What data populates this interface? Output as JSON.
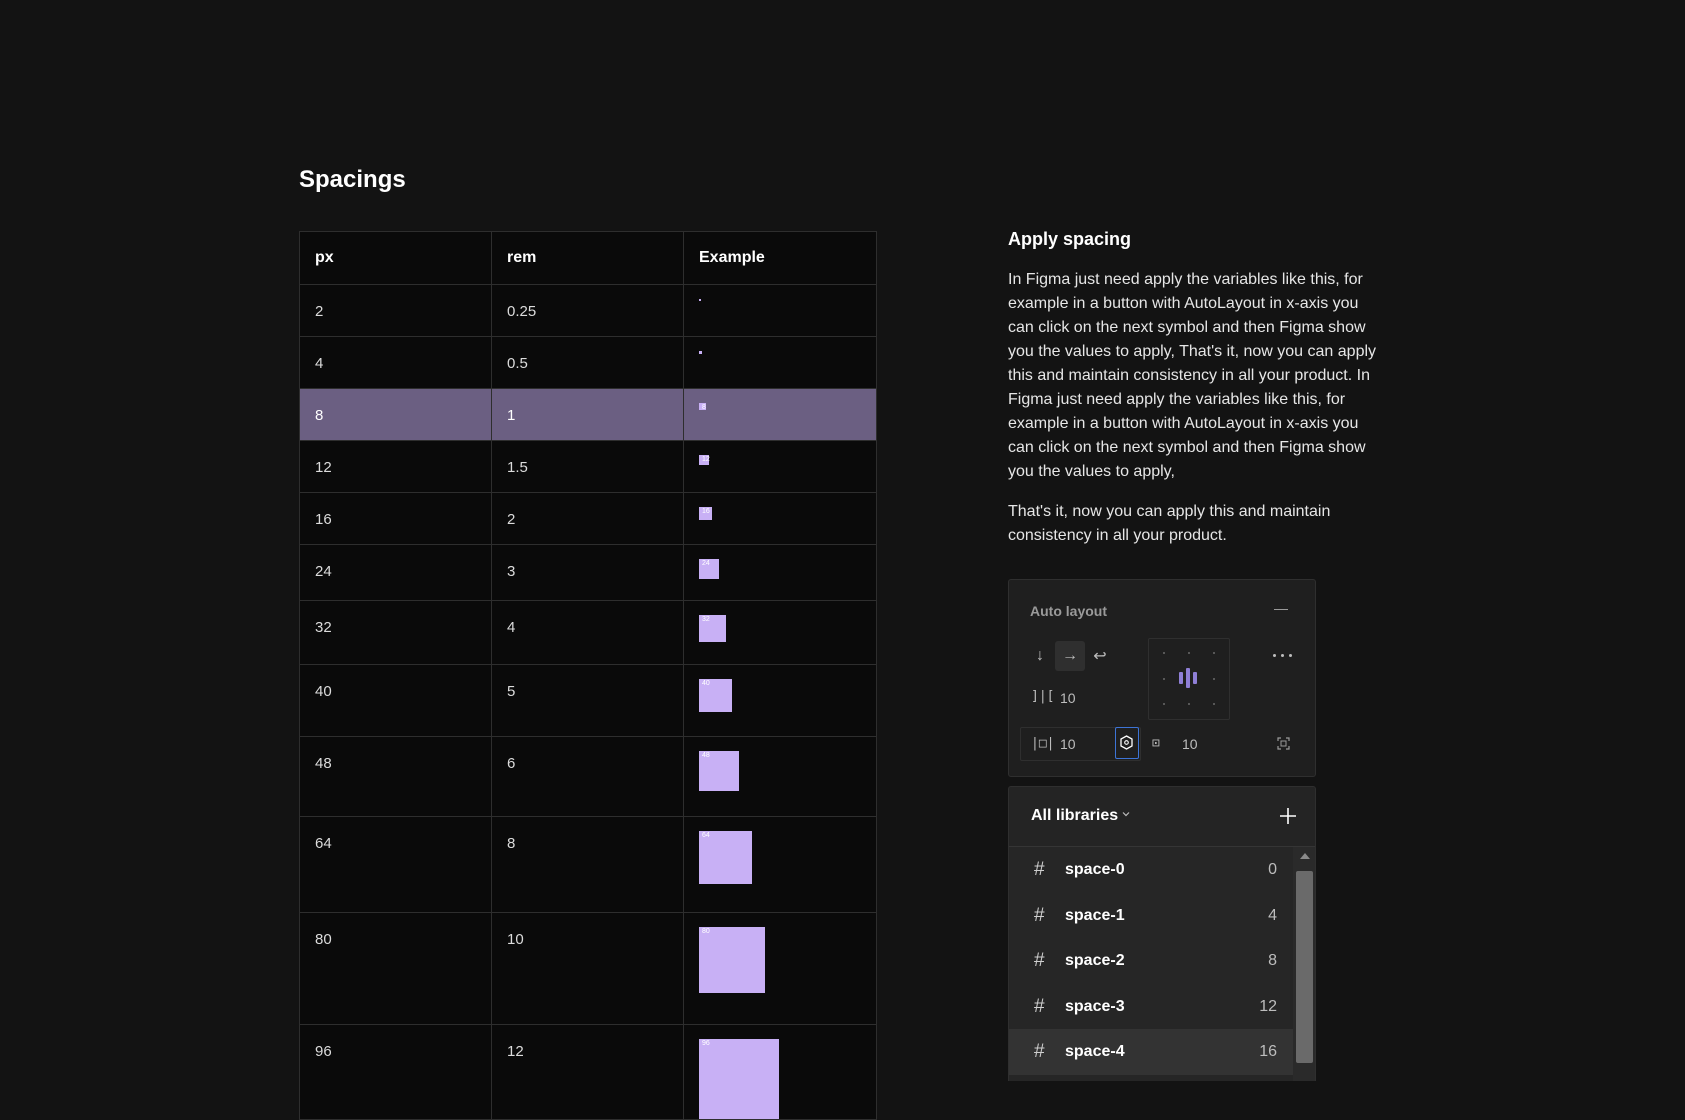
{
  "page": {
    "title": "Spacings"
  },
  "table": {
    "headers": [
      "px",
      "rem",
      "Example"
    ],
    "rows": [
      {
        "px": "2",
        "rem": "0.25",
        "label": "2",
        "swatch": 2
      },
      {
        "px": "4",
        "rem": "0.5",
        "label": "4",
        "swatch": 4
      },
      {
        "px": "8",
        "rem": "1",
        "label": "8",
        "swatch": 8,
        "selected": true
      },
      {
        "px": "12",
        "rem": "1.5",
        "label": "12",
        "swatch": 12
      },
      {
        "px": "16",
        "rem": "2",
        "label": "16",
        "swatch": 16
      },
      {
        "px": "24",
        "rem": "3",
        "label": "24",
        "swatch": 24
      },
      {
        "px": "32",
        "rem": "4",
        "label": "32",
        "swatch": 32
      },
      {
        "px": "40",
        "rem": "5",
        "label": "40",
        "swatch": 40
      },
      {
        "px": "48",
        "rem": "6",
        "label": "48",
        "swatch": 48
      },
      {
        "px": "64",
        "rem": "8",
        "label": "64",
        "swatch": 64
      },
      {
        "px": "80",
        "rem": "10",
        "label": "80",
        "swatch": 80
      },
      {
        "px": "96",
        "rem": "12",
        "label": "96",
        "swatch": 96
      }
    ]
  },
  "apply": {
    "title": "Apply spacing",
    "paragraph1": "In Figma just need apply the variables like this, for example in a button with AutoLayout in x-axis you can click on the next symbol and then Figma show you the values to apply, That's it, now you can apply this and maintain consistency in all your product. In Figma just need apply the variables like this, for example in a button with AutoLayout in x-axis you can click on the next symbol and then Figma show you the values to apply,",
    "paragraph2": "That's it, now you can apply this and maintain consistency in all your product."
  },
  "auto_layout": {
    "title": "Auto layout",
    "gap_value": "10",
    "horizontal_padding": "10",
    "vertical_padding": "10",
    "direction_icons": [
      "arrow-down-icon",
      "arrow-right-icon",
      "wrap-icon"
    ],
    "active_direction": "arrow-right-icon"
  },
  "libraries": {
    "title": "All libraries",
    "items": [
      {
        "name": "space-0",
        "value": "0"
      },
      {
        "name": "space-1",
        "value": "4"
      },
      {
        "name": "space-2",
        "value": "8"
      },
      {
        "name": "space-3",
        "value": "12"
      },
      {
        "name": "space-4",
        "value": "16"
      }
    ]
  },
  "colors": {
    "background": "#131313",
    "swatch": "#c8b0f5",
    "selected_row": "#6b5f82",
    "focus_blue": "#3d74d6"
  }
}
